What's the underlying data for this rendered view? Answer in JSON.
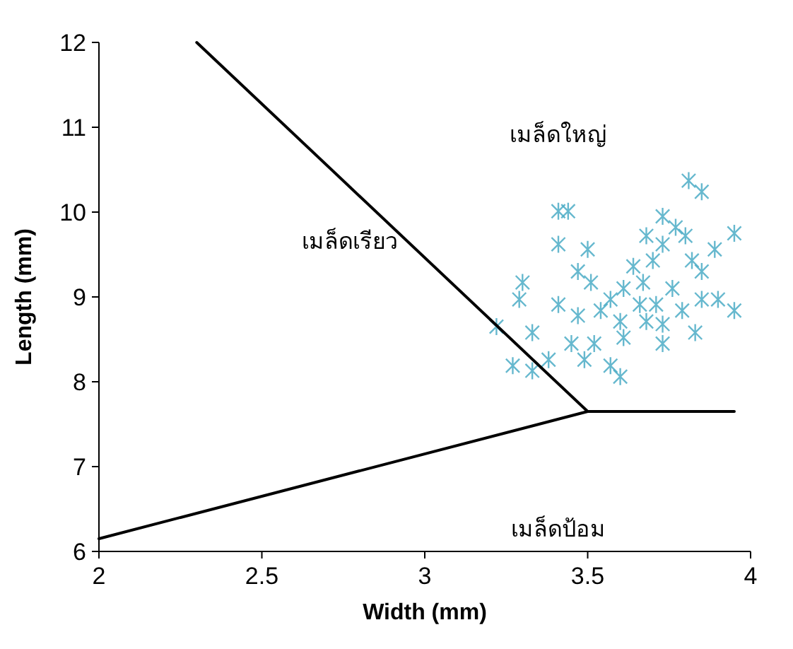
{
  "chart_data": {
    "type": "scatter",
    "xlabel": "Width (mm)",
    "ylabel": "Length (mm)",
    "xlim": [
      2,
      4
    ],
    "ylim": [
      6,
      12
    ],
    "xticks": [
      {
        "value": 2,
        "label": "2"
      },
      {
        "value": 2.5,
        "label": "2.5"
      },
      {
        "value": 3,
        "label": "3"
      },
      {
        "value": 3.5,
        "label": "3.5"
      },
      {
        "value": 4,
        "label": "4"
      }
    ],
    "yticks": [
      6,
      7,
      8,
      9,
      10,
      11,
      12
    ],
    "grid": false,
    "series": [
      {
        "marker": "cross",
        "color": "#4bacc6",
        "x": [
          3.81,
          3.85,
          3.41,
          3.44,
          3.73,
          3.95,
          3.77,
          3.68,
          3.8,
          3.73,
          3.41,
          3.89,
          3.5,
          3.47,
          3.64,
          3.7,
          3.82,
          3.85,
          3.3,
          3.51,
          3.29,
          3.67,
          3.76,
          3.61,
          3.57,
          3.54,
          3.66,
          3.71,
          3.79,
          3.85,
          3.9,
          3.95,
          3.41,
          3.47,
          3.6,
          3.68,
          3.73,
          3.22,
          3.33,
          3.45,
          3.52,
          3.61,
          3.57,
          3.27,
          3.38,
          3.49,
          3.73,
          3.83,
          3.33,
          3.6
        ],
        "values": [
          10.37,
          10.24,
          10.01,
          10.01,
          9.95,
          9.75,
          9.82,
          9.72,
          9.72,
          9.62,
          9.62,
          9.56,
          9.56,
          9.3,
          9.36,
          9.43,
          9.43,
          9.3,
          9.17,
          9.17,
          8.97,
          9.17,
          9.1,
          9.1,
          8.97,
          8.84,
          8.91,
          8.91,
          8.84,
          8.97,
          8.97,
          8.84,
          8.91,
          8.78,
          8.71,
          8.71,
          8.68,
          8.65,
          8.58,
          8.45,
          8.45,
          8.52,
          8.19,
          8.19,
          8.26,
          8.26,
          8.45,
          8.58,
          8.13,
          8.06
        ]
      },
      {
        "type": "line",
        "color": "#000000",
        "x": [
          2.3,
          3.5,
          3.95
        ],
        "values": [
          12,
          7.65,
          7.65
        ]
      },
      {
        "type": "line",
        "color": "#000000",
        "x": [
          2,
          3.5
        ],
        "values": [
          6.15,
          7.65
        ]
      }
    ],
    "annotations": [
      "เมล็ดใหญ่",
      "เมล็ดเรียว",
      "เมล็ดป้อม"
    ]
  }
}
